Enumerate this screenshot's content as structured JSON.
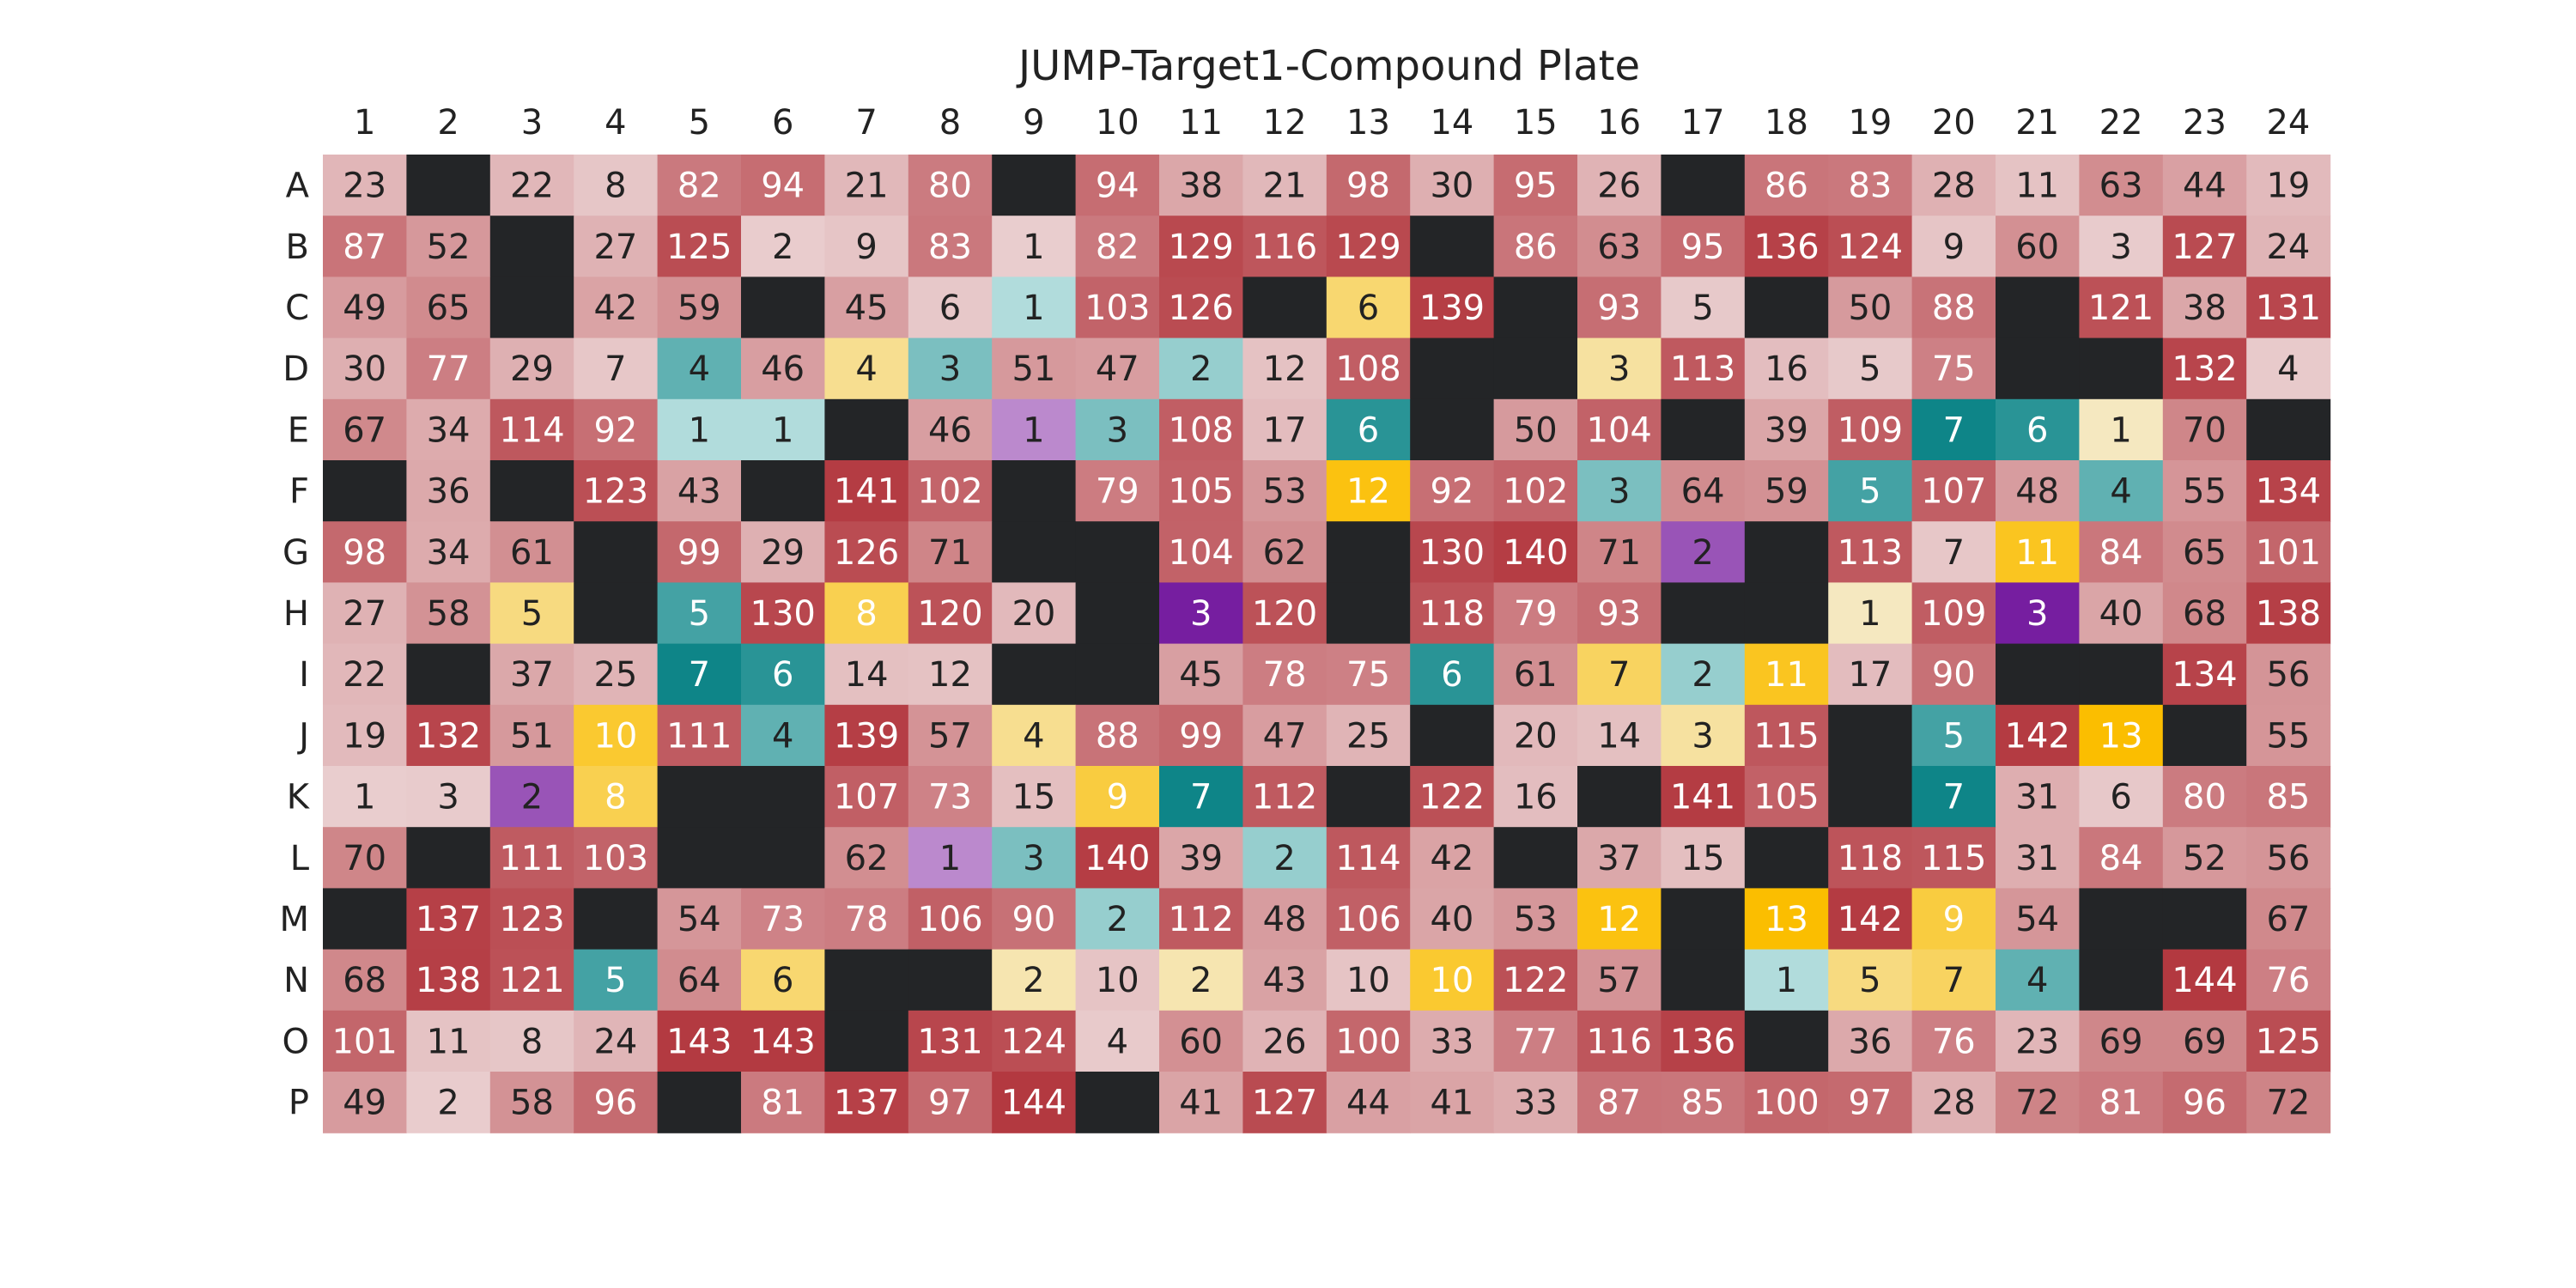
{
  "chart_data": {
    "type": "heatmap",
    "title": "JUMP-Target1-Compound Plate",
    "xlabel": "",
    "ylabel": "",
    "x_tick_position": "top",
    "columns": [
      "1",
      "2",
      "3",
      "4",
      "5",
      "6",
      "7",
      "8",
      "9",
      "10",
      "11",
      "12",
      "13",
      "14",
      "15",
      "16",
      "17",
      "18",
      "19",
      "20",
      "21",
      "22",
      "23",
      "24"
    ],
    "rows": [
      "A",
      "B",
      "C",
      "D",
      "E",
      "F",
      "G",
      "H",
      "I",
      "J",
      "K",
      "L",
      "M",
      "N",
      "O",
      "P"
    ],
    "values": [
      [
        23,
        null,
        22,
        8,
        82,
        94,
        21,
        80,
        null,
        94,
        38,
        21,
        98,
        30,
        95,
        26,
        null,
        86,
        83,
        28,
        11,
        63,
        44,
        19
      ],
      [
        87,
        52,
        null,
        27,
        125,
        2,
        9,
        83,
        1,
        82,
        129,
        116,
        129,
        null,
        86,
        63,
        95,
        136,
        124,
        9,
        60,
        3,
        127,
        24
      ],
      [
        49,
        65,
        null,
        42,
        59,
        null,
        45,
        6,
        1,
        103,
        126,
        null,
        6,
        139,
        null,
        93,
        5,
        null,
        50,
        88,
        null,
        121,
        38,
        131
      ],
      [
        30,
        77,
        29,
        7,
        4,
        46,
        4,
        3,
        51,
        47,
        2,
        12,
        108,
        null,
        null,
        3,
        113,
        16,
        5,
        75,
        null,
        null,
        132,
        4
      ],
      [
        67,
        34,
        114,
        92,
        1,
        1,
        null,
        46,
        1,
        3,
        108,
        17,
        6,
        null,
        50,
        104,
        null,
        39,
        109,
        7,
        6,
        1,
        70,
        null
      ],
      [
        null,
        36,
        null,
        123,
        43,
        null,
        141,
        102,
        null,
        79,
        105,
        53,
        12,
        92,
        102,
        3,
        64,
        59,
        5,
        107,
        48,
        4,
        55,
        134
      ],
      [
        98,
        34,
        61,
        null,
        99,
        29,
        126,
        71,
        null,
        null,
        104,
        62,
        null,
        130,
        140,
        71,
        2,
        null,
        113,
        7,
        11,
        84,
        65,
        101
      ],
      [
        27,
        58,
        5,
        null,
        5,
        130,
        8,
        120,
        20,
        null,
        3,
        120,
        null,
        118,
        79,
        93,
        null,
        null,
        1,
        109,
        3,
        40,
        68,
        138
      ],
      [
        22,
        null,
        37,
        25,
        7,
        6,
        14,
        12,
        null,
        null,
        45,
        78,
        75,
        6,
        61,
        7,
        2,
        11,
        17,
        90,
        null,
        null,
        134,
        56
      ],
      [
        19,
        132,
        51,
        10,
        111,
        4,
        139,
        57,
        4,
        88,
        99,
        47,
        25,
        null,
        20,
        14,
        3,
        115,
        null,
        5,
        142,
        13,
        null,
        55
      ],
      [
        1,
        3,
        2,
        8,
        null,
        null,
        107,
        73,
        15,
        9,
        7,
        112,
        null,
        122,
        16,
        null,
        141,
        105,
        null,
        7,
        31,
        6,
        80,
        85
      ],
      [
        70,
        null,
        111,
        103,
        null,
        null,
        62,
        1,
        3,
        140,
        39,
        2,
        114,
        42,
        null,
        37,
        15,
        null,
        118,
        115,
        31,
        84,
        52,
        56
      ],
      [
        null,
        137,
        123,
        null,
        54,
        73,
        78,
        106,
        90,
        2,
        112,
        48,
        106,
        40,
        53,
        12,
        null,
        13,
        142,
        9,
        54,
        null,
        null,
        67
      ],
      [
        68,
        138,
        121,
        5,
        64,
        6,
        null,
        null,
        2,
        10,
        2,
        43,
        10,
        10,
        122,
        57,
        null,
        1,
        5,
        7,
        4,
        null,
        144,
        76
      ],
      [
        101,
        11,
        8,
        24,
        143,
        143,
        null,
        131,
        124,
        4,
        60,
        26,
        100,
        33,
        77,
        116,
        136,
        null,
        36,
        76,
        23,
        69,
        69,
        125
      ],
      [
        49,
        2,
        58,
        96,
        null,
        81,
        137,
        97,
        144,
        null,
        41,
        127,
        44,
        41,
        33,
        87,
        85,
        100,
        97,
        28,
        72,
        81,
        96,
        72
      ]
    ],
    "categories": [
      [
        2,
        1,
        2,
        2,
        2,
        2,
        2,
        2,
        1,
        2,
        2,
        2,
        2,
        2,
        2,
        2,
        1,
        2,
        2,
        2,
        2,
        2,
        2,
        2
      ],
      [
        2,
        2,
        1,
        2,
        2,
        2,
        2,
        2,
        2,
        2,
        2,
        2,
        2,
        1,
        2,
        2,
        2,
        2,
        2,
        2,
        2,
        2,
        2,
        2
      ],
      [
        2,
        2,
        1,
        2,
        2,
        1,
        2,
        2,
        3,
        2,
        2,
        1,
        4,
        2,
        1,
        2,
        2,
        1,
        2,
        2,
        1,
        2,
        2,
        2
      ],
      [
        2,
        2,
        2,
        2,
        3,
        2,
        4,
        3,
        2,
        2,
        3,
        2,
        2,
        1,
        1,
        4,
        2,
        2,
        2,
        2,
        1,
        1,
        2,
        2
      ],
      [
        2,
        2,
        2,
        2,
        3,
        3,
        1,
        2,
        5,
        3,
        2,
        2,
        3,
        1,
        2,
        2,
        1,
        2,
        2,
        3,
        3,
        4,
        2,
        1
      ],
      [
        1,
        2,
        1,
        2,
        2,
        1,
        2,
        2,
        1,
        2,
        2,
        2,
        4,
        2,
        2,
        3,
        2,
        2,
        3,
        2,
        2,
        3,
        2,
        2
      ],
      [
        2,
        2,
        2,
        1,
        2,
        2,
        2,
        2,
        1,
        1,
        2,
        2,
        1,
        2,
        2,
        2,
        5,
        1,
        2,
        2,
        4,
        2,
        2,
        2
      ],
      [
        2,
        2,
        4,
        1,
        3,
        2,
        4,
        2,
        2,
        1,
        5,
        2,
        1,
        2,
        2,
        2,
        1,
        1,
        4,
        2,
        5,
        2,
        2,
        2
      ],
      [
        2,
        1,
        2,
        2,
        3,
        3,
        2,
        2,
        1,
        1,
        2,
        2,
        2,
        3,
        2,
        4,
        3,
        4,
        2,
        2,
        1,
        1,
        2,
        2
      ],
      [
        2,
        2,
        2,
        4,
        2,
        3,
        2,
        2,
        4,
        2,
        2,
        2,
        2,
        1,
        2,
        2,
        4,
        2,
        1,
        3,
        2,
        4,
        1,
        2
      ],
      [
        2,
        2,
        5,
        4,
        1,
        1,
        2,
        2,
        2,
        4,
        3,
        2,
        1,
        2,
        2,
        1,
        2,
        2,
        1,
        3,
        2,
        2,
        2,
        2
      ],
      [
        2,
        1,
        2,
        2,
        1,
        1,
        2,
        5,
        3,
        2,
        2,
        3,
        2,
        2,
        1,
        2,
        2,
        1,
        2,
        2,
        2,
        2,
        2,
        2
      ],
      [
        1,
        2,
        2,
        1,
        2,
        2,
        2,
        2,
        2,
        3,
        2,
        2,
        2,
        2,
        2,
        4,
        1,
        4,
        2,
        4,
        2,
        1,
        1,
        2
      ],
      [
        2,
        2,
        2,
        3,
        2,
        4,
        1,
        1,
        4,
        2,
        4,
        2,
        2,
        4,
        2,
        2,
        1,
        3,
        4,
        4,
        3,
        1,
        2,
        2
      ],
      [
        2,
        2,
        2,
        2,
        2,
        2,
        1,
        2,
        2,
        2,
        2,
        2,
        2,
        2,
        2,
        2,
        2,
        1,
        2,
        2,
        2,
        2,
        2,
        2
      ],
      [
        2,
        2,
        2,
        2,
        1,
        2,
        2,
        2,
        2,
        1,
        2,
        2,
        2,
        2,
        2,
        2,
        2,
        2,
        2,
        2,
        2,
        2,
        2,
        2
      ]
    ],
    "empty_color": "#232527",
    "color_scales": {
      "2": {
        "from": [
          233,
          205,
          206
        ],
        "to": [
          179,
          57,
          64
        ],
        "max": 144
      },
      "3": {
        "from": [
          177,
          220,
          220
        ],
        "to": [
          14,
          133,
          136
        ],
        "max": 7
      },
      "4": {
        "from": [
          245,
          232,
          192
        ],
        "to": [
          251,
          190,
          0
        ],
        "max": 13
      },
      "5": {
        "from": [
          187,
          137,
          205
        ],
        "to": [
          118,
          30,
          160
        ],
        "max": 3
      }
    },
    "text_light": "#ffffff",
    "text_dark": "#222222"
  }
}
